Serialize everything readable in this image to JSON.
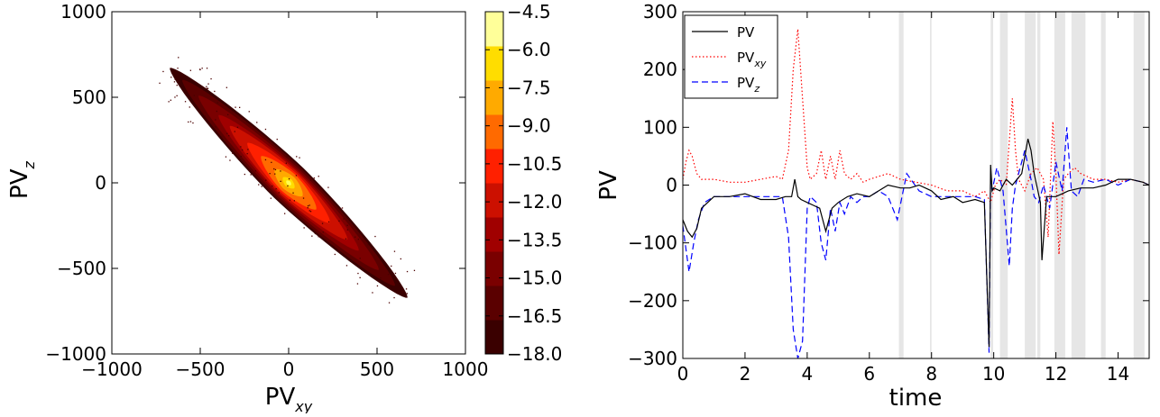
{
  "chart_data": [
    {
      "type": "heatmap",
      "title": "",
      "xlabel": "PV",
      "xlabel_sub": "xy",
      "ylabel": "PV",
      "ylabel_sub": "z",
      "xlim": [
        -1000,
        1000
      ],
      "ylim": [
        -1000,
        1000
      ],
      "xticks": [
        -1000,
        -500,
        0,
        500,
        1000
      ],
      "yticks": [
        -1000,
        -500,
        0,
        500,
        1000
      ],
      "grid": false,
      "description_values": {
        "distribution_axis_angle_deg": -45,
        "center": [
          0,
          0
        ]
      },
      "contour_levels": [
        {
          "level": -18.0,
          "a": 950,
          "b": 120,
          "color": "#3a0000"
        },
        {
          "level": -16.5,
          "a": 850,
          "b": 110,
          "color": "#5a0000"
        },
        {
          "level": -15.0,
          "a": 720,
          "b": 98,
          "color": "#7a0000"
        },
        {
          "level": -13.5,
          "a": 560,
          "b": 88,
          "color": "#a00000"
        },
        {
          "level": -12.0,
          "a": 470,
          "b": 80,
          "color": "#cc1000"
        },
        {
          "level": -10.5,
          "a": 330,
          "b": 70,
          "color": "#ff2000"
        },
        {
          "level": -9.0,
          "a": 220,
          "b": 60,
          "color": "#ff6a00"
        },
        {
          "level": -7.5,
          "a": 110,
          "b": 45,
          "color": "#ffaa00"
        },
        {
          "level": -6.0,
          "a": 45,
          "b": 25,
          "color": "#ffdd00"
        },
        {
          "level": -4.5,
          "a": 18,
          "b": 12,
          "color": "#ffff55"
        }
      ],
      "colorbar": {
        "ticks": [
          "−4.5",
          "−6.0",
          "−7.5",
          "−9.0",
          "−10.5",
          "−12.0",
          "−13.5",
          "−15.0",
          "−16.5",
          "−18.0"
        ],
        "bands": [
          "#3a0000",
          "#5a0000",
          "#7a0000",
          "#a00000",
          "#cc1000",
          "#ff2000",
          "#ff6a00",
          "#ffaa00",
          "#ffdd00",
          "#ffff99"
        ]
      }
    },
    {
      "type": "line",
      "title": "",
      "xlabel": "time",
      "ylabel": "PV",
      "xlim": [
        0,
        15
      ],
      "ylim": [
        -300,
        300
      ],
      "xticks": [
        0,
        2,
        4,
        6,
        8,
        10,
        12,
        14
      ],
      "yticks": [
        -300,
        -200,
        -100,
        0,
        100,
        200,
        300
      ],
      "grid": false,
      "legend_position": "top-left",
      "shaded_intervals": [
        [
          6.95,
          7.1
        ],
        [
          7.95,
          8.0
        ],
        [
          9.9,
          9.98
        ],
        [
          10.2,
          10.45
        ],
        [
          11.0,
          11.35
        ],
        [
          11.4,
          11.5
        ],
        [
          11.95,
          12.3
        ],
        [
          12.5,
          12.95
        ],
        [
          13.45,
          13.6
        ],
        [
          14.5,
          14.85
        ]
      ],
      "series": [
        {
          "name": "PV",
          "name_sub": "",
          "color": "#000000",
          "dash": "",
          "x": [
            0,
            0.15,
            0.3,
            0.45,
            0.6,
            1.0,
            1.5,
            2.0,
            2.5,
            3.0,
            3.3,
            3.5,
            3.6,
            3.7,
            3.8,
            4.0,
            4.2,
            4.4,
            4.5,
            4.6,
            4.8,
            5.0,
            5.3,
            5.6,
            6.0,
            6.3,
            6.6,
            7.0,
            7.3,
            7.6,
            8.0,
            8.3,
            8.7,
            9.0,
            9.4,
            9.7,
            9.85,
            9.9,
            9.95,
            10.0,
            10.2,
            10.4,
            10.6,
            10.9,
            11.1,
            11.2,
            11.3,
            11.5,
            11.55,
            11.7,
            12.0,
            12.4,
            12.8,
            13.2,
            13.6,
            14.0,
            14.4,
            14.8,
            15.0
          ],
          "y": [
            -60,
            -80,
            -90,
            -75,
            -40,
            -20,
            -20,
            -15,
            -25,
            -25,
            -20,
            -20,
            10,
            -20,
            -25,
            -30,
            -35,
            -40,
            -60,
            -80,
            -40,
            -30,
            -20,
            -15,
            -20,
            -10,
            0,
            -5,
            -5,
            0,
            -10,
            -25,
            -20,
            -30,
            -25,
            -30,
            -280,
            35,
            -10,
            -5,
            -10,
            10,
            0,
            20,
            80,
            60,
            20,
            -30,
            -130,
            -20,
            -20,
            -10,
            -5,
            -5,
            0,
            10,
            10,
            5,
            0
          ]
        },
        {
          "name": "PV",
          "name_sub": "xy",
          "color": "#ff0000",
          "dash": "1.5,2.5",
          "x": [
            0,
            0.1,
            0.2,
            0.3,
            0.45,
            0.6,
            1.0,
            1.5,
            2.0,
            2.5,
            3.0,
            3.2,
            3.4,
            3.55,
            3.7,
            3.85,
            4.0,
            4.1,
            4.3,
            4.45,
            4.6,
            4.75,
            4.9,
            5.05,
            5.2,
            5.4,
            5.6,
            5.8,
            6.0,
            6.3,
            6.6,
            7.0,
            7.5,
            8.0,
            8.5,
            9.0,
            9.4,
            9.7,
            9.9,
            10.05,
            10.2,
            10.4,
            10.6,
            10.7,
            10.8,
            11.0,
            11.2,
            11.4,
            11.6,
            11.75,
            11.9,
            12.0,
            12.1,
            12.25,
            12.4,
            12.6,
            12.8,
            13.2,
            13.6,
            14.0,
            14.4,
            14.8,
            15.0
          ],
          "y": [
            10,
            40,
            60,
            50,
            20,
            10,
            10,
            5,
            5,
            10,
            15,
            10,
            60,
            200,
            270,
            150,
            30,
            10,
            20,
            60,
            10,
            50,
            10,
            60,
            20,
            10,
            20,
            5,
            10,
            15,
            20,
            10,
            5,
            0,
            -10,
            -10,
            -20,
            -10,
            -30,
            0,
            10,
            0,
            150,
            60,
            10,
            -10,
            20,
            30,
            10,
            -90,
            110,
            20,
            -120,
            10,
            20,
            30,
            20,
            10,
            10,
            5,
            10,
            5,
            0
          ]
        },
        {
          "name": "PV",
          "name_sub": "z",
          "color": "#0000ff",
          "dash": "7,4",
          "x": [
            0,
            0.1,
            0.2,
            0.35,
            0.5,
            0.7,
            1.0,
            1.5,
            2.0,
            2.5,
            3.0,
            3.2,
            3.4,
            3.55,
            3.7,
            3.85,
            4.0,
            4.1,
            4.3,
            4.45,
            4.6,
            4.75,
            4.9,
            5.05,
            5.2,
            5.4,
            5.6,
            5.8,
            6.0,
            6.3,
            6.6,
            6.9,
            7.2,
            7.6,
            8.0,
            8.5,
            9.0,
            9.4,
            9.7,
            9.85,
            9.9,
            9.95,
            10.1,
            10.3,
            10.5,
            10.6,
            10.7,
            10.9,
            11.0,
            11.2,
            11.3,
            11.45,
            11.6,
            11.8,
            12.0,
            12.2,
            12.35,
            12.5,
            12.7,
            12.9,
            13.2,
            13.6,
            14.0,
            14.4,
            14.8,
            15.0
          ],
          "y": [
            -70,
            -110,
            -150,
            -100,
            -60,
            -30,
            -20,
            -20,
            -20,
            -20,
            -20,
            -20,
            -90,
            -250,
            -300,
            -270,
            -40,
            -20,
            -30,
            -100,
            -130,
            -40,
            -80,
            -30,
            -50,
            -20,
            -30,
            -20,
            -20,
            -10,
            -20,
            -60,
            20,
            -10,
            -20,
            -20,
            -20,
            -20,
            -25,
            -290,
            20,
            -10,
            30,
            -10,
            -140,
            -40,
            0,
            40,
            60,
            10,
            -20,
            -30,
            0,
            -40,
            40,
            -10,
            100,
            -10,
            -20,
            10,
            5,
            10,
            0,
            10,
            5,
            0
          ]
        }
      ]
    }
  ]
}
